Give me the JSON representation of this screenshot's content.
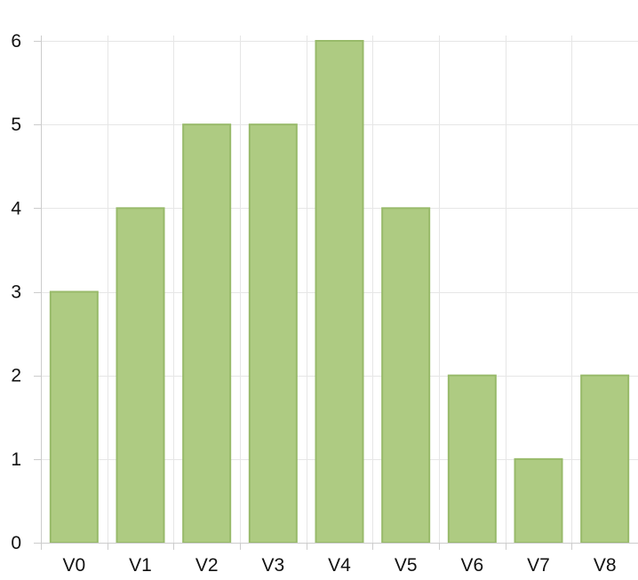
{
  "chart_data": {
    "type": "bar",
    "title": "",
    "xlabel": "",
    "ylabel": "",
    "categories": [
      "V0",
      "V1",
      "V2",
      "V3",
      "V4",
      "V5",
      "V6",
      "V7",
      "V8"
    ],
    "values": [
      3,
      4,
      5,
      5,
      6,
      4,
      2,
      1,
      2
    ],
    "ylim": [
      0,
      6
    ],
    "yticks": [
      "0",
      "1",
      "2",
      "3",
      "4",
      "5",
      "6"
    ],
    "grid": true,
    "legend": "none",
    "colors": {
      "bar_fill": "#aecb82",
      "bar_stroke": "#98ba6a",
      "grid": "#e6e6e6",
      "axis": "#cccccc",
      "text": "#111111"
    }
  }
}
